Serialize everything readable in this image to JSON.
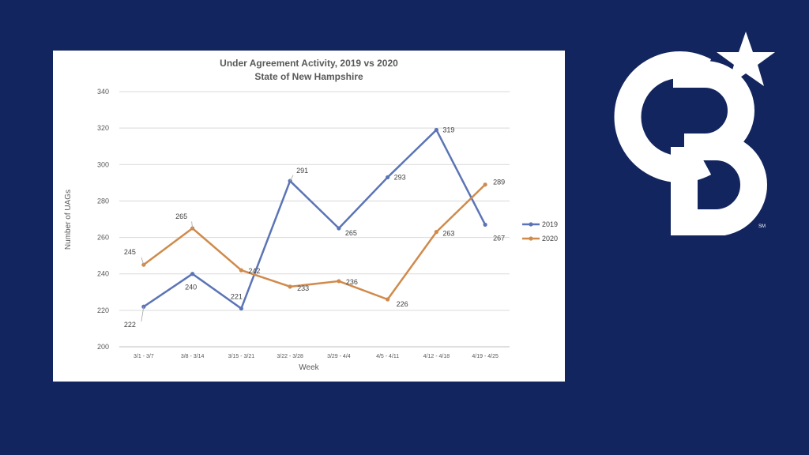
{
  "brand": {
    "logo_text": "CB",
    "service_mark": "SM"
  },
  "chart_data": {
    "type": "line",
    "title": [
      "Under Agreement Activity,  2019 vs 2020",
      "State of New Hampshire"
    ],
    "xlabel": "Week",
    "ylabel": "Number of UAGs",
    "categories": [
      "3/1 - 3/7",
      "3/8 - 3/14",
      "3/15 - 3/21",
      "3/22 - 3/28",
      "3/29 - 4/4",
      "4/5 - 4/11",
      "4/12 - 4/18",
      "4/19 - 4/25"
    ],
    "ylim": [
      200,
      340
    ],
    "yticks": [
      200,
      220,
      240,
      260,
      280,
      300,
      320,
      340
    ],
    "grid": true,
    "legend": "right",
    "series": [
      {
        "name": "2019",
        "color": "#5b74b5",
        "values": [
          222,
          240,
          221,
          291,
          265,
          293,
          319,
          267
        ]
      },
      {
        "name": "2020",
        "color": "#d08a4b",
        "values": [
          245,
          265,
          242,
          233,
          236,
          226,
          263,
          289
        ]
      }
    ]
  }
}
